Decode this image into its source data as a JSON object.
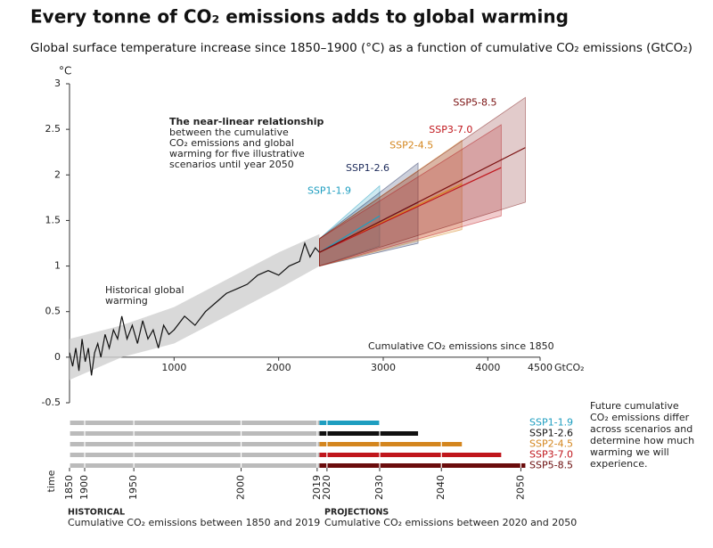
{
  "chart_data": [
    {
      "type": "line",
      "title": "Every tonne of CO₂ emissions adds to global warming",
      "subtitle": "Global surface temperature increase since 1850–1900 (°C) as a function of cumulative CO₂ emissions (GtCO₂)",
      "y_unit": "°C",
      "x_unit": "GtCO₂",
      "x_label": "Cumulative CO₂ emissions since 1850",
      "annotation": [
        "The near-linear relationship",
        "between the cumulative",
        "CO₂ emissions and global",
        "warming for five illustrative",
        "scenarios until year 2050"
      ],
      "xlim": [
        0,
        4500
      ],
      "ylim": [
        -0.5,
        3
      ],
      "xticks": [
        1000,
        2000,
        3000,
        4000,
        4500
      ],
      "yticks": [
        -0.5,
        0,
        0.5,
        1,
        1.5,
        2,
        2.5,
        3
      ],
      "historical": {
        "label": [
          "Historical global",
          "warming"
        ],
        "color": "#111111",
        "x": [
          0,
          30,
          60,
          90,
          120,
          150,
          180,
          210,
          240,
          270,
          300,
          340,
          380,
          420,
          460,
          500,
          550,
          600,
          650,
          700,
          750,
          800,
          850,
          900,
          950,
          1000,
          1100,
          1200,
          1300,
          1400,
          1500,
          1600,
          1700,
          1800,
          1900,
          2000,
          2100,
          2200,
          2250,
          2300,
          2350,
          2390
        ],
        "values": [
          0.05,
          -0.1,
          0.1,
          -0.15,
          0.2,
          -0.05,
          0.1,
          -0.2,
          0.05,
          0.15,
          0.0,
          0.25,
          0.1,
          0.3,
          0.2,
          0.45,
          0.2,
          0.35,
          0.15,
          0.4,
          0.2,
          0.3,
          0.1,
          0.35,
          0.25,
          0.3,
          0.45,
          0.35,
          0.5,
          0.6,
          0.7,
          0.75,
          0.8,
          0.9,
          0.95,
          0.9,
          1.0,
          1.05,
          1.25,
          1.1,
          1.2,
          1.15
        ],
        "range_color": "#cfcfcf",
        "range_x": [
          0,
          500,
          1000,
          1500,
          2000,
          2390
        ],
        "range_lower": [
          -0.25,
          0.0,
          0.15,
          0.45,
          0.75,
          1.0
        ],
        "range_upper": [
          0.2,
          0.35,
          0.55,
          0.85,
          1.15,
          1.35
        ]
      },
      "series": [
        {
          "name": "SSP1-1.9",
          "color": "#1e9ec0",
          "x": [
            2390,
            2966
          ],
          "values": [
            1.15,
            1.55
          ],
          "lower": [
            1.0,
            1.22
          ],
          "upper": [
            1.3,
            1.88
          ]
        },
        {
          "name": "SSP1-2.6",
          "color": "#1c2a5a",
          "x": [
            2390,
            3333
          ],
          "values": [
            1.15,
            1.7
          ],
          "lower": [
            1.0,
            1.25
          ],
          "upper": [
            1.3,
            2.13
          ]
        },
        {
          "name": "SSP2-4.5",
          "color": "#d4861e",
          "x": [
            2390,
            3752
          ],
          "values": [
            1.15,
            1.9
          ],
          "lower": [
            1.0,
            1.4
          ],
          "upper": [
            1.3,
            2.38
          ]
        },
        {
          "name": "SSP3-7.0",
          "color": "#c0161c",
          "x": [
            2390,
            4128
          ],
          "values": [
            1.15,
            2.08
          ],
          "lower": [
            1.0,
            1.55
          ],
          "upper": [
            1.3,
            2.55
          ]
        },
        {
          "name": "SSP5-8.5",
          "color": "#7a1010",
          "x": [
            2390,
            4359
          ],
          "values": [
            1.15,
            2.3
          ],
          "lower": [
            1.0,
            1.7
          ],
          "upper": [
            1.3,
            2.85
          ]
        }
      ]
    },
    {
      "type": "bar",
      "orientation": "horizontal",
      "stacked": true,
      "x_label": "time",
      "categories": [
        "SSP1-1.9",
        "SSP1-2.6",
        "SSP2-4.5",
        "SSP3-7.0",
        "SSP5-8.5"
      ],
      "category_colors": [
        "#1e9ec0",
        "#111111",
        "#d4861e",
        "#c0161c",
        "#6a0c0c"
      ],
      "xlim": [
        0,
        4500
      ],
      "xticks": [
        {
          "value": 0,
          "label": "1850"
        },
        {
          "value": 145,
          "label": "1900"
        },
        {
          "value": 615,
          "label": "1950"
        },
        {
          "value": 1641,
          "label": "2000"
        },
        {
          "value": 2368,
          "label": "2019"
        },
        {
          "value": 2462,
          "label": "2020"
        },
        {
          "value": 2966,
          "label": "2030"
        },
        {
          "value": 3556,
          "label": "2040"
        },
        {
          "value": 4316,
          "label": "2050"
        }
      ],
      "note": [
        "Future cumulative",
        "CO₂ emissions differ",
        "across scenarios and",
        "determine how much",
        "warming we will",
        "experience."
      ],
      "series": [
        {
          "name": "HISTORICAL",
          "description": "Cumulative CO₂ emissions between 1850 and 2019",
          "color": "#bbbbbb",
          "values": [
            2390,
            2390,
            2390,
            2390,
            2390
          ]
        },
        {
          "name": "PROJECTIONS",
          "description": "Cumulative CO₂ emissions between 2020 and 2050",
          "values": [
            576,
            943,
            1362,
            1738,
            1969
          ]
        }
      ]
    }
  ]
}
